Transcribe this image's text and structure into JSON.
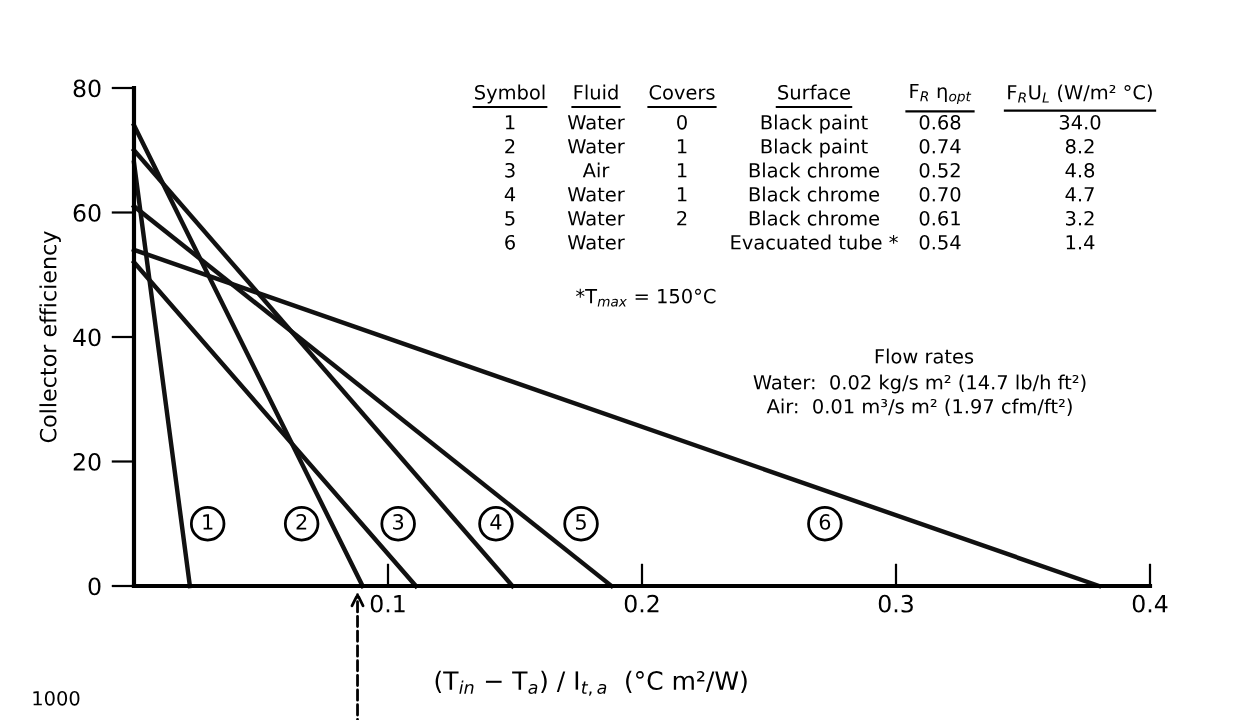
{
  "chart_data": {
    "type": "line",
    "xlabel": "(T$_{in}$ − T$_{a}$) / I$_{t,a}$  (°C m²/W)",
    "ylabel": "Collector efficiency",
    "xlim": [
      0,
      0.4
    ],
    "xticks": [
      0.1,
      0.2,
      0.3,
      0.4
    ],
    "ylim": [
      0,
      80
    ],
    "yticks": [
      0,
      20,
      40,
      60,
      80
    ],
    "grid": false,
    "legend": false,
    "marker": "none",
    "line_style": "solid",
    "series": [
      {
        "color": "#111111",
        "x": [
          0,
          0.022
        ],
        "values": [
          68,
          0
        ]
      },
      {
        "color": "#111111",
        "x": [
          0,
          0.09
        ],
        "values": [
          74,
          0
        ]
      },
      {
        "color": "#111111",
        "x": [
          0,
          0.111
        ],
        "values": [
          52,
          0
        ]
      },
      {
        "color": "#111111",
        "x": [
          0,
          0.149
        ],
        "values": [
          70,
          0
        ]
      },
      {
        "color": "#111111",
        "x": [
          0,
          0.188
        ],
        "values": [
          61,
          0
        ]
      },
      {
        "color": "#111111",
        "x": [
          0,
          0.38
        ],
        "values": [
          54,
          0
        ]
      }
    ],
    "annotations": [
      "Symbol",
      "Fluid",
      "Covers",
      "Surface",
      "F$_{R}$ η$_{opt}$",
      "F$_{R}$U$_{L}$ (W/m² °C)",
      "1",
      "Water",
      "0",
      "Black paint",
      "0.68",
      "34.0",
      "2",
      "Water",
      "1",
      "Black paint",
      "0.74",
      "8.2",
      "3",
      "Air",
      "1",
      "Black chrome",
      "0.52",
      "4.8",
      "4",
      "Water",
      "1",
      "Black chrome",
      "0.70",
      "4.7",
      "5",
      "Water",
      "2",
      "Black chrome",
      "0.61",
      "3.2",
      "6",
      "Water",
      "Evacuated tube *",
      "0.54",
      "1.4",
      "*T$_{max}$ = 150°C",
      "Flow rates",
      "Water:  0.02 kg/s m² (14.7 lb/h ft²)",
      "Air:  0.01 m³/s m² (1.97 cfm/ft²)",
      {
        "text": "1",
        "x": 0.029,
        "y": 10
      },
      {
        "text": "2",
        "x": 0.066,
        "y": 10
      },
      {
        "text": "3",
        "x": 0.104,
        "y": 10
      },
      {
        "text": "4",
        "x": 0.1425,
        "y": 10
      },
      {
        "text": "5",
        "x": 0.176,
        "y": 10
      },
      {
        "text": "6",
        "x": 0.272,
        "y": 10
      },
      "1000"
    ]
  }
}
